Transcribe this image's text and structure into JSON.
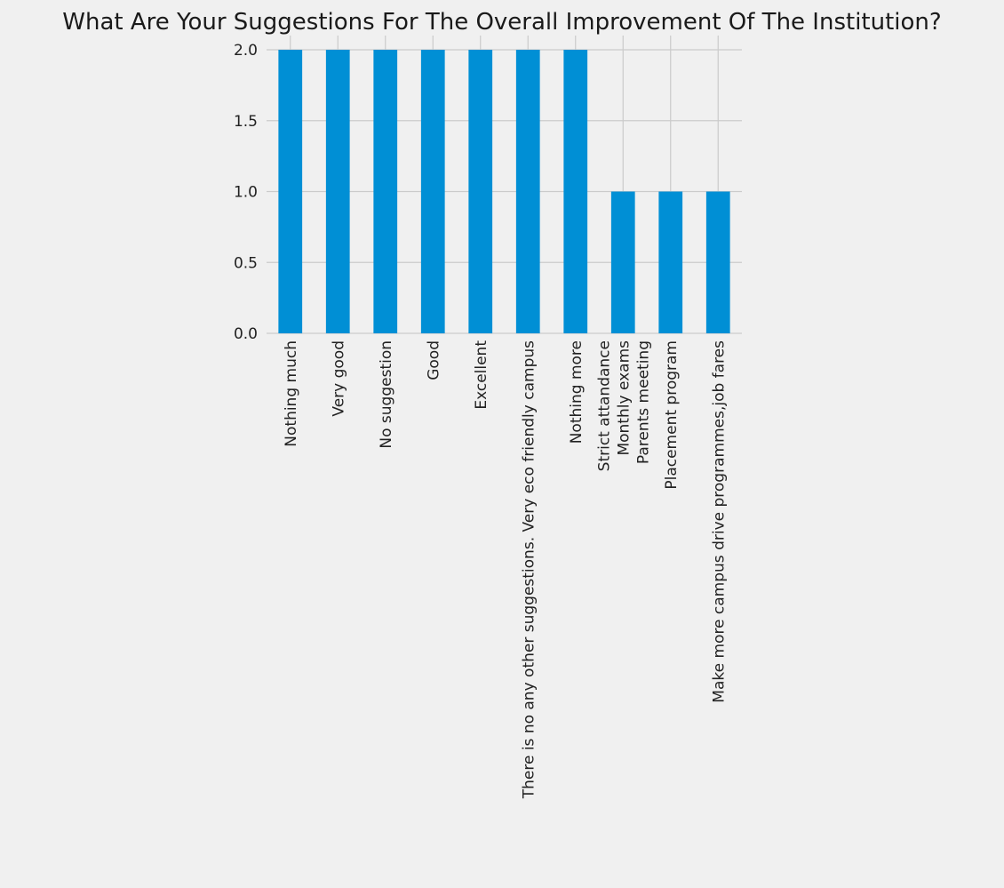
{
  "chart_data": {
    "type": "bar",
    "title": "What Are Your Suggestions For The Overall Improvement Of The Institution?",
    "xlabel": "",
    "ylabel": "",
    "ylim": [
      0,
      2.0
    ],
    "yticks": [
      "0.0",
      "0.5",
      "1.0",
      "1.5",
      "2.0"
    ],
    "grid": true,
    "bar_color": "#008fd5",
    "categories": [
      "Nothing much",
      "Very good",
      "No suggestion",
      "Good",
      "Excellent",
      "There is no any other suggestions. Very eco friendly campus",
      "Nothing more",
      "Strict attandance\nMonthly exams\nParents meeting",
      "Placement program",
      "Make more campus drive programmes,job fares"
    ],
    "values": [
      2,
      2,
      2,
      2,
      2,
      2,
      2,
      1,
      1,
      1
    ]
  }
}
